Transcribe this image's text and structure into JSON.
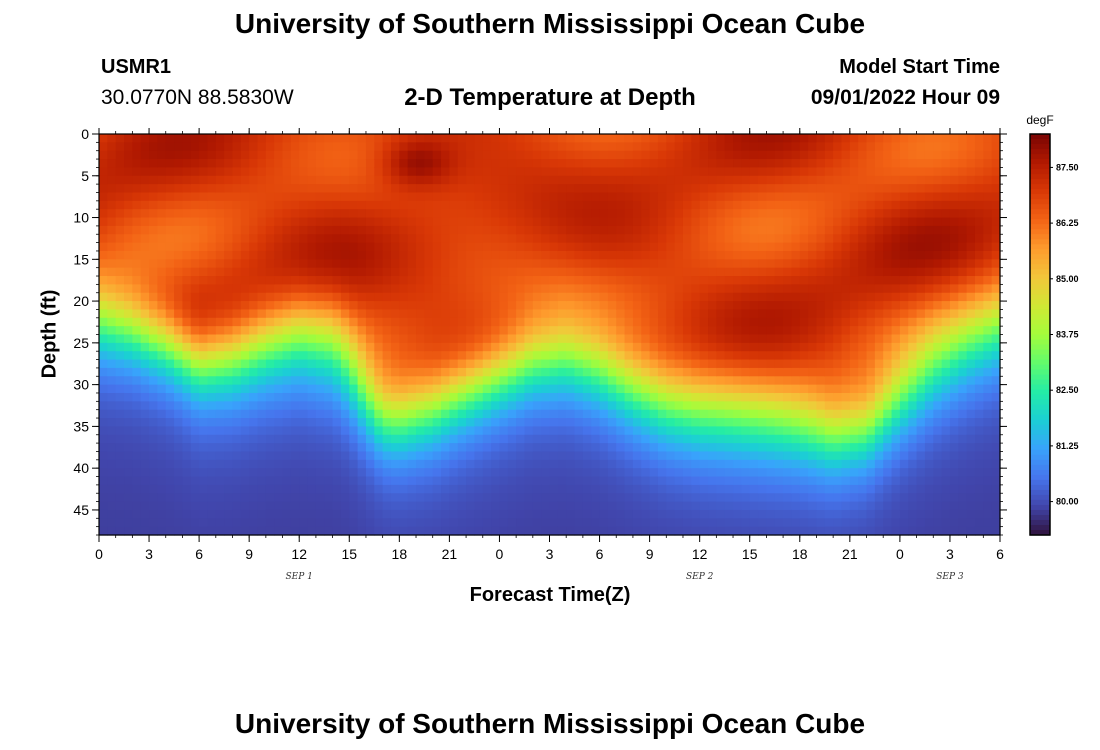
{
  "header": {
    "title": "University of Southern Mississippi Ocean Cube",
    "station_id": "USMR1",
    "coordinates": "30.0770N  88.5830W",
    "subtitle": "2-D Temperature at Depth",
    "model_label": "Model Start Time",
    "model_time": "09/01/2022 Hour 09"
  },
  "footer": {
    "title": "University of Southern Mississippi Ocean Cube"
  },
  "chart_data": {
    "type": "heatmap",
    "title": "2-D Temperature at Depth",
    "xlabel": "Forecast Time(Z)",
    "ylabel": "Depth (ft)",
    "x_hours_range": [
      0,
      54
    ],
    "x_tick_labels": [
      "0",
      "3",
      "6",
      "9",
      "12",
      "15",
      "18",
      "21",
      "0",
      "3",
      "6",
      "9",
      "12",
      "15",
      "18",
      "21",
      "0",
      "3",
      "6"
    ],
    "date_labels": [
      {
        "text": "SEP 1",
        "at_hour": 12
      },
      {
        "text": "SEP 2",
        "at_hour": 36
      },
      {
        "text": "SEP 3",
        "at_hour": 51
      }
    ],
    "y_range": [
      0,
      48
    ],
    "y_tick_labels": [
      "0",
      "5",
      "10",
      "15",
      "20",
      "25",
      "30",
      "35",
      "40",
      "45"
    ],
    "colorbar": {
      "unit": "degF",
      "range": [
        79.25,
        88.25
      ],
      "tick_labels": [
        "87.50",
        "86.25",
        "85.00",
        "83.75",
        "82.50",
        "81.25",
        "80.00"
      ],
      "colors": [
        "#30123b",
        "#4145ab",
        "#4675ed",
        "#39a2fc",
        "#1bcfd4",
        "#24eca6",
        "#61fc6c",
        "#a4fc3b",
        "#d1e834",
        "#f3c63a",
        "#fe9b2d",
        "#f36315",
        "#d93806",
        "#b11901",
        "#7a0403"
      ]
    },
    "thermocline_depth_ft": {
      "hours": [
        0,
        2,
        4,
        6,
        8,
        10,
        12,
        14,
        15,
        16,
        17,
        18,
        20,
        22,
        24,
        26,
        28,
        30,
        32,
        34,
        36,
        38,
        40,
        42,
        44,
        46,
        48,
        50,
        52,
        54
      ],
      "depths": [
        21,
        22,
        24,
        27,
        26.5,
        25,
        24,
        25,
        27,
        30,
        32.5,
        33,
        32,
        30,
        28,
        26,
        25.5,
        27,
        29.5,
        31.5,
        32.5,
        33,
        33.5,
        34,
        35,
        34,
        30,
        26.5,
        24,
        22
      ]
    },
    "surface_temp_degF": 86.9,
    "bottom_temp_degF": 79.8,
    "warm_core": {
      "hour": 19,
      "depth_ft": 3.5,
      "temp_degF": 88.1
    }
  }
}
